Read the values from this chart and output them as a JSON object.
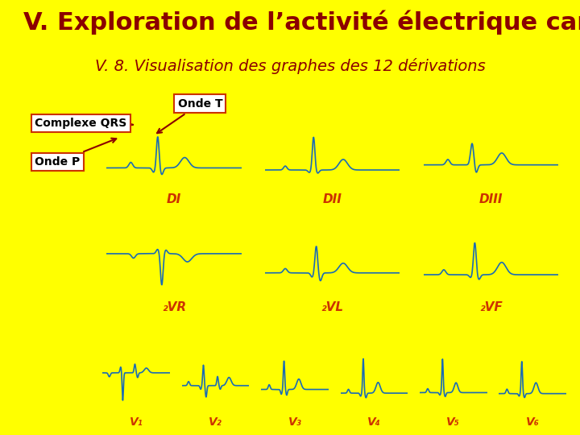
{
  "title": "V. Exploration de l’activité électrique cardiaque",
  "subtitle": "V. 8. Visualisation des graphes des 12 dérivations",
  "title_color": "#8B0000",
  "subtitle_color": "#8B0000",
  "bg_header_color": "#FFFF00",
  "bg_content_color": "#F0F0F8",
  "title_fontsize": 22,
  "subtitle_fontsize": 14,
  "label_color": "#cc3300",
  "label_fontsize": 11,
  "ecg_color": "#1a6bb5",
  "annotation_color": "#8B0000",
  "row1_labels": [
    "DI",
    "DII",
    "DIII"
  ],
  "row2_labels": [
    "₂VR",
    "₂VL",
    "₂VF"
  ],
  "row3_labels": [
    "V₁",
    "V₂",
    "V₃",
    "V₄",
    "V₅",
    "V₆"
  ],
  "ann_onde_t": "Onde T",
  "ann_qrs": "Complexe QRS",
  "ann_onde_p": "Onde P"
}
